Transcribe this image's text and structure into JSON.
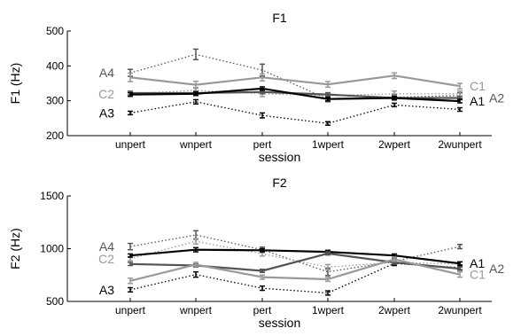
{
  "chart_data": [
    {
      "type": "line",
      "title": "F1",
      "xlabel": "session",
      "ylabel": "F1 (Hz)",
      "ylim": [
        200,
        500
      ],
      "yticks": [
        200,
        300,
        400,
        500
      ],
      "categories": [
        "unpert",
        "wnpert",
        "pert",
        "1wpert",
        "2wpert",
        "2wunpert"
      ],
      "grid": false,
      "series": [
        {
          "name": "A4",
          "label_side": "left",
          "style": "dotted",
          "color": "#555555",
          "values": [
            380,
            433,
            388,
            305,
            310,
            315
          ],
          "err": [
            10,
            15,
            17,
            8,
            8,
            8
          ]
        },
        {
          "name": "C2",
          "label_side": "left",
          "style": "dotted",
          "color": "#999999",
          "values": [
            320,
            330,
            320,
            315,
            320,
            320
          ],
          "err": [
            8,
            8,
            8,
            8,
            8,
            8
          ]
        },
        {
          "name": "A3",
          "label_side": "left",
          "style": "dotted",
          "color": "#000000",
          "values": [
            265,
            297,
            258,
            235,
            288,
            275
          ],
          "err": [
            5,
            6,
            7,
            5,
            5,
            5
          ]
        },
        {
          "name": "C1",
          "label_side": "right",
          "style": "solid",
          "color": "#999999",
          "values": [
            367,
            346,
            367,
            347,
            372,
            342
          ],
          "err": [
            12,
            10,
            10,
            8,
            8,
            8
          ]
        },
        {
          "name": "A2",
          "label_side": "right",
          "style": "solid",
          "color": "#555555",
          "values": [
            322,
            322,
            325,
            318,
            308,
            308
          ],
          "err": [
            5,
            5,
            5,
            5,
            5,
            5
          ]
        },
        {
          "name": "A1",
          "label_side": "right",
          "style": "solid",
          "color": "#000000",
          "values": [
            318,
            320,
            335,
            305,
            308,
            299
          ],
          "err": [
            5,
            5,
            5,
            5,
            5,
            5
          ]
        }
      ]
    },
    {
      "type": "line",
      "title": "F2",
      "xlabel": "session",
      "ylabel": "F2 (Hz)",
      "ylim": [
        500,
        1500
      ],
      "yticks": [
        500,
        1000,
        1500
      ],
      "categories": [
        "unpert",
        "wnpert",
        "pert",
        "1wpert",
        "2wpert",
        "2wunpert"
      ],
      "grid": false,
      "series": [
        {
          "name": "A4",
          "label_side": "left",
          "style": "dotted",
          "color": "#555555",
          "values": [
            1020,
            1130,
            990,
            780,
            880,
            1020
          ],
          "err": [
            30,
            40,
            25,
            35,
            25,
            20
          ]
        },
        {
          "name": "C2",
          "label_side": "left",
          "style": "dotted",
          "color": "#999999",
          "values": [
            905,
            1070,
            950,
            825,
            870,
            855
          ],
          "err": [
            20,
            25,
            20,
            25,
            20,
            20
          ]
        },
        {
          "name": "A3",
          "label_side": "left",
          "style": "dotted",
          "color": "#000000",
          "values": [
            610,
            755,
            625,
            580,
            860,
            820
          ],
          "err": [
            20,
            25,
            20,
            20,
            20,
            20
          ]
        },
        {
          "name": "A1",
          "label_side": "right",
          "style": "solid",
          "color": "#000000",
          "values": [
            935,
            990,
            985,
            970,
            935,
            860
          ],
          "err": [
            15,
            20,
            15,
            15,
            15,
            15
          ]
        },
        {
          "name": "A2",
          "label_side": "right",
          "style": "solid",
          "color": "#555555",
          "values": [
            855,
            840,
            790,
            955,
            870,
            810
          ],
          "err": [
            15,
            15,
            15,
            15,
            15,
            15
          ]
        },
        {
          "name": "C1",
          "label_side": "right",
          "style": "solid",
          "color": "#999999",
          "values": [
            695,
            850,
            730,
            710,
            900,
            755
          ],
          "err": [
            25,
            20,
            20,
            20,
            20,
            25
          ]
        }
      ]
    }
  ]
}
